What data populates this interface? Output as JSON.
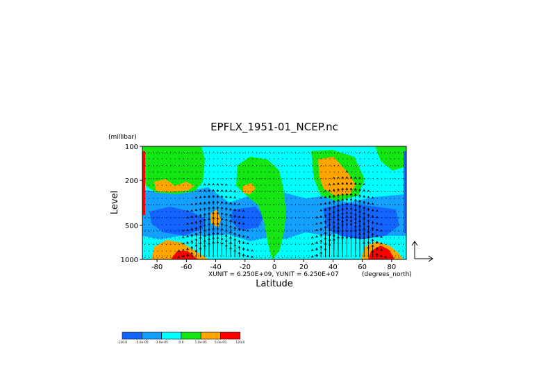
{
  "chart_data": {
    "type": "heatmap",
    "title": "EPFLX_1951-01_NCEP.nc",
    "xlabel": "Latitude",
    "ylabel": "Level",
    "yunit": "(millibar)",
    "xunit": "(degrees_north)",
    "vector_scale_text": "XUNIT = 6.250E+09, YUNIT = 6.250E+07",
    "x_ticks": [
      "-80",
      "-60",
      "-40",
      "-20",
      "0",
      "20",
      "40",
      "60",
      "80"
    ],
    "x_tick_values": [
      -80,
      -60,
      -40,
      -20,
      0,
      20,
      40,
      60,
      80
    ],
    "y_ticks": [
      "100",
      "200",
      "500",
      "1000"
    ],
    "y_tick_values": [
      100,
      200,
      500,
      1000
    ],
    "xlim": [
      -90,
      90
    ],
    "ylim": [
      1000,
      100
    ],
    "y_scale": "log",
    "grid": "dotted horizontal lines",
    "colorbar": {
      "colors": [
        "#1464ff",
        "#14a0ff",
        "#00ffff",
        "#14e614",
        "#ffa500",
        "#ff0000"
      ],
      "labels": [
        "-120.0",
        "-5.0e-05",
        "-1.0e-05",
        "0.0",
        "1.0e-05",
        "5.0e-05",
        "120.0"
      ]
    },
    "contour_regions": [
      {
        "name": "background",
        "class": 2
      },
      {
        "name": "upper-mid-low-band",
        "class": 1
      },
      {
        "name": "sh-strong-negative",
        "class": 0
      },
      {
        "name": "eq-mid-negative",
        "class": 0
      },
      {
        "name": "nh-strong-negative",
        "class": 0
      },
      {
        "name": "sh-upper-positive",
        "class": 3
      },
      {
        "name": "sh-upper-strong",
        "class": 4
      },
      {
        "name": "eq-positive-column",
        "class": 3
      },
      {
        "name": "eq-positive-core",
        "class": 4
      },
      {
        "name": "nh-upper-positive",
        "class": 3
      },
      {
        "name": "nh-upper-strong",
        "class": 4
      },
      {
        "name": "top-right-positive",
        "class": 3
      },
      {
        "name": "sh-mid-positive",
        "class": 4
      },
      {
        "name": "nh-surface-positive",
        "class": 4
      },
      {
        "name": "nh-surface-max",
        "class": 5
      },
      {
        "name": "sh-surface-positive",
        "class": 4
      },
      {
        "name": "sh-surface-max",
        "class": 5
      },
      {
        "name": "left-edge-max",
        "class": 5
      },
      {
        "name": "right-edge-min",
        "class": 0
      }
    ]
  }
}
